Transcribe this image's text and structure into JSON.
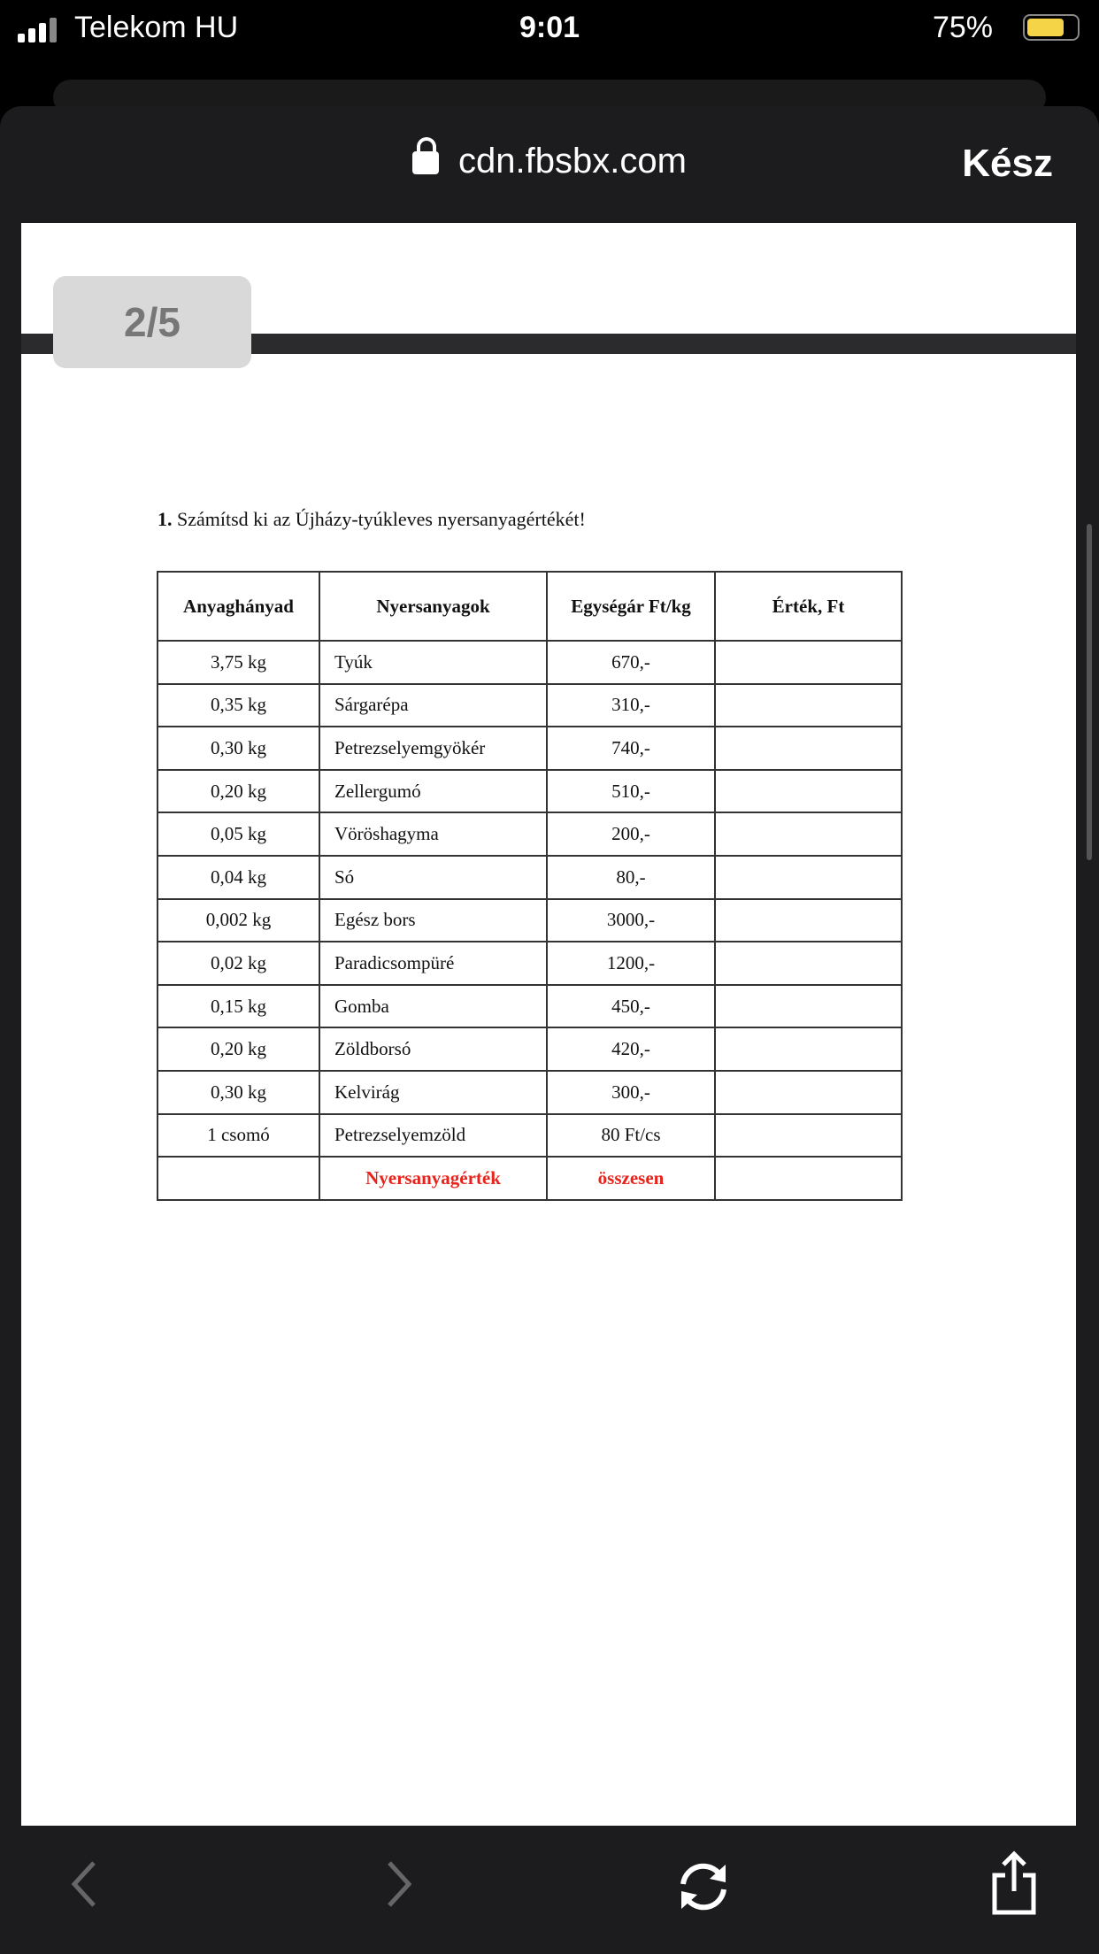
{
  "status": {
    "carrier": "Telekom HU",
    "time": "9:01",
    "battery": "75%",
    "battery_level": 75
  },
  "browser": {
    "url": "cdn.fbsbx.com",
    "done": "Kész"
  },
  "viewer": {
    "page_indicator": "2/5"
  },
  "document": {
    "task_number": "1.",
    "task_text": " Számítsd ki az Újházy-tyúkleves nyersanyagértékét!",
    "headers": [
      "Anyaghányad",
      "Nyersanyagok",
      "Egységár Ft/kg",
      "Érték, Ft"
    ],
    "rows": [
      [
        "3,75 kg",
        "Tyúk",
        "670,-",
        ""
      ],
      [
        "0,35 kg",
        "Sárgarépa",
        "310,-",
        ""
      ],
      [
        "0,30 kg",
        "Petrezselyemgyökér",
        "740,-",
        ""
      ],
      [
        "0,20 kg",
        "Zellergumó",
        "510,-",
        ""
      ],
      [
        "0,05 kg",
        "Vöröshagyma",
        "200,-",
        ""
      ],
      [
        "0,04 kg",
        "Só",
        "80,-",
        ""
      ],
      [
        "0,002 kg",
        "Egész bors",
        "3000,-",
        ""
      ],
      [
        "0,02 kg",
        "Paradicsompüré",
        "1200,-",
        ""
      ],
      [
        "0,15 kg",
        "Gomba",
        "450,-",
        ""
      ],
      [
        "0,20 kg",
        "Zöldborsó",
        "420,-",
        ""
      ],
      [
        "0,30 kg",
        "Kelvirág",
        "300,-",
        ""
      ],
      [
        "1 csomó",
        "Petrezselyemzöld",
        "80 Ft/cs",
        ""
      ]
    ],
    "total": [
      "",
      "Nyersanyagérték",
      "összesen",
      ""
    ],
    "total_color": "#e8231c"
  },
  "toolbar": {
    "icons": [
      "chevron-left-icon",
      "chevron-right-icon",
      "refresh-icon",
      "share-icon"
    ]
  }
}
